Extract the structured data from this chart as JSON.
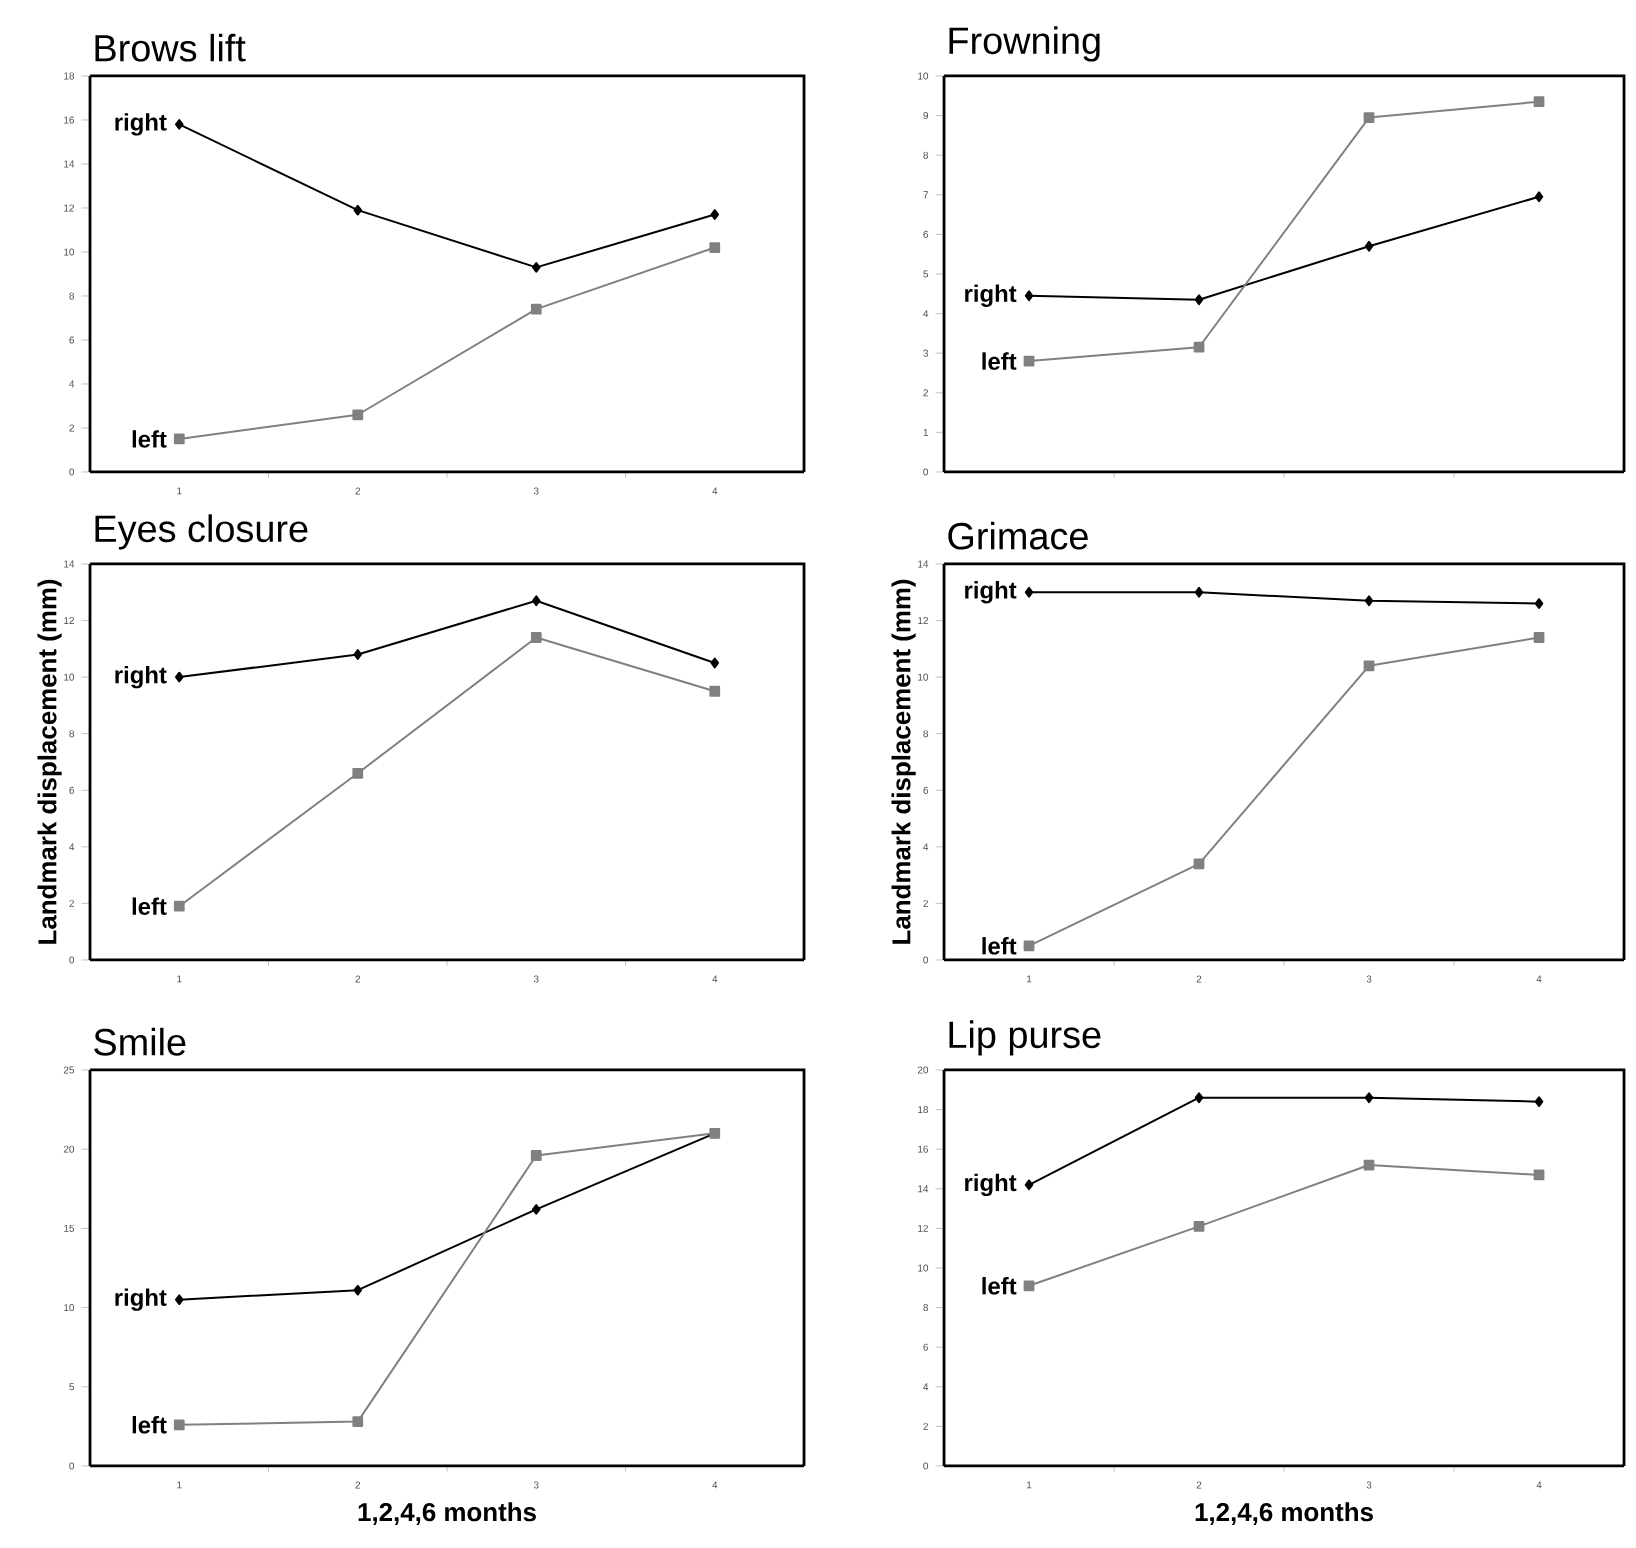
{
  "chart_data": [
    {
      "type": "line",
      "title": "Brows lift",
      "categories": [
        "1",
        "2",
        "3",
        "4"
      ],
      "ylim": [
        0,
        18
      ],
      "yticks": [
        0,
        2,
        4,
        6,
        8,
        10,
        12,
        14,
        16,
        18
      ],
      "grid": false,
      "legend": false,
      "series": [
        {
          "name": "right",
          "color": "#000000",
          "marker": "diamond",
          "values": [
            15.8,
            11.9,
            9.3,
            11.7
          ]
        },
        {
          "name": "left",
          "color": "#808080",
          "marker": "square",
          "values": [
            1.5,
            2.6,
            7.4,
            10.2
          ]
        }
      ]
    },
    {
      "type": "line",
      "title": "Frowning",
      "categories": [
        "1",
        "2",
        "3",
        "4"
      ],
      "tick_labels": "y",
      "ylim": [
        0,
        10
      ],
      "yticks": [
        0,
        1,
        2,
        3,
        4,
        5,
        6,
        7,
        8,
        9,
        10
      ],
      "grid": false,
      "legend": false,
      "series": [
        {
          "name": "right",
          "color": "#000000",
          "marker": "diamond",
          "values": [
            4.45,
            4.35,
            5.7,
            6.95
          ]
        },
        {
          "name": "left",
          "color": "#808080",
          "marker": "square",
          "values": [
            2.8,
            3.15,
            8.95,
            9.35
          ]
        }
      ]
    },
    {
      "type": "line",
      "title": "Eyes closure",
      "ylabel": "Landmark displacement (mm)",
      "categories": [
        "1",
        "2",
        "3",
        "4"
      ],
      "ylim": [
        0,
        14
      ],
      "yticks": [
        0,
        2,
        4,
        6,
        8,
        10,
        12,
        14
      ],
      "grid": false,
      "legend": false,
      "series": [
        {
          "name": "right",
          "color": "#000000",
          "marker": "diamond",
          "values": [
            10.0,
            10.8,
            12.7,
            10.5
          ]
        },
        {
          "name": "left",
          "color": "#808080",
          "marker": "square",
          "values": [
            1.9,
            6.6,
            11.4,
            9.5
          ]
        }
      ]
    },
    {
      "type": "line",
      "title": "Grimace",
      "ylabel": "Landmark displacement (mm)",
      "categories": [
        "1",
        "2",
        "3",
        "4"
      ],
      "ylim": [
        0,
        14
      ],
      "yticks": [
        0,
        2,
        4,
        6,
        8,
        10,
        12,
        14
      ],
      "grid": false,
      "legend": false,
      "series": [
        {
          "name": "right",
          "color": "#000000",
          "marker": "diamond",
          "values": [
            13.0,
            13.0,
            12.7,
            12.6
          ]
        },
        {
          "name": "left",
          "color": "#808080",
          "marker": "square",
          "values": [
            0.5,
            3.4,
            10.4,
            11.4
          ]
        }
      ]
    },
    {
      "type": "line",
      "title": "Smile",
      "xlabel": "1,2,4,6 months",
      "categories": [
        "1",
        "2",
        "3",
        "4"
      ],
      "ylim": [
        0,
        25
      ],
      "yticks": [
        0,
        5,
        10,
        15,
        20,
        25
      ],
      "grid": false,
      "legend": false,
      "series": [
        {
          "name": "right",
          "color": "#000000",
          "marker": "diamond",
          "values": [
            10.5,
            11.1,
            16.2,
            21.0
          ]
        },
        {
          "name": "left",
          "color": "#808080",
          "marker": "square",
          "values": [
            2.6,
            2.8,
            19.6,
            21.0
          ]
        }
      ]
    },
    {
      "type": "line",
      "title": "Lip purse",
      "xlabel": "1,2,4,6 months",
      "categories": [
        "1",
        "2",
        "3",
        "4"
      ],
      "ylim": [
        0,
        20
      ],
      "yticks": [
        0,
        2,
        4,
        6,
        8,
        10,
        12,
        14,
        16,
        18,
        20
      ],
      "grid": false,
      "legend": false,
      "series": [
        {
          "name": "right",
          "color": "#000000",
          "marker": "diamond",
          "values": [
            14.2,
            18.6,
            18.6,
            18.4
          ]
        },
        {
          "name": "left",
          "color": "#808080",
          "marker": "square",
          "values": [
            9.1,
            12.1,
            15.2,
            14.7
          ]
        }
      ]
    }
  ]
}
